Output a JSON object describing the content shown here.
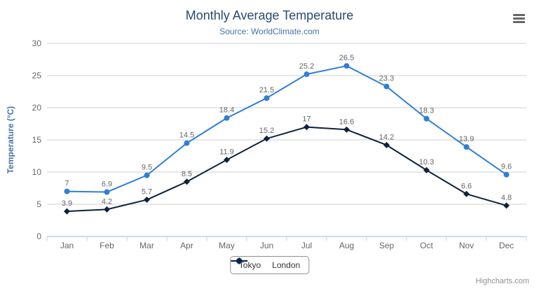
{
  "header": {
    "title": "Monthly Average Temperature",
    "subtitle": "Source: WorldClimate.com"
  },
  "credits": {
    "label": "Highcharts.com"
  },
  "icons": {
    "context_menu": "hamburger-icon"
  },
  "colors": {
    "tokyo": "#2f7ed8",
    "london": "#0d233a",
    "title_text": "#274b6d",
    "subtitle_text": "#4572A7",
    "axis_labels": "#666666",
    "data_labels": "#666666",
    "gridline": "#d0d0d0",
    "axis_line": "#c0d0e0",
    "legend_border": "#909090",
    "legend_text": "#333333",
    "credits_text": "#909090",
    "background": "#ffffff"
  },
  "chart_data": {
    "type": "line",
    "title": "Monthly Average Temperature",
    "subtitle": "Source: WorldClimate.com",
    "categories": [
      "Jan",
      "Feb",
      "Mar",
      "Apr",
      "May",
      "Jun",
      "Jul",
      "Aug",
      "Sep",
      "Oct",
      "Nov",
      "Dec"
    ],
    "series": [
      {
        "name": "Tokyo",
        "color": "#2f7ed8",
        "marker": "circle",
        "values": [
          7,
          6.9,
          9.5,
          14.5,
          18.4,
          21.5,
          25.2,
          26.5,
          23.3,
          18.3,
          13.9,
          9.6
        ]
      },
      {
        "name": "London",
        "color": "#0d233a",
        "marker": "diamond",
        "values": [
          3.9,
          4.2,
          5.7,
          8.5,
          11.9,
          15.2,
          17,
          16.6,
          14.2,
          10.3,
          6.6,
          4.8
        ]
      }
    ],
    "xlabel": "",
    "ylabel": "Temperature (°C)",
    "ylim": [
      0,
      30
    ],
    "ytick_interval": 5,
    "grid": true,
    "data_labels": true,
    "legend_position": "bottom-center"
  }
}
